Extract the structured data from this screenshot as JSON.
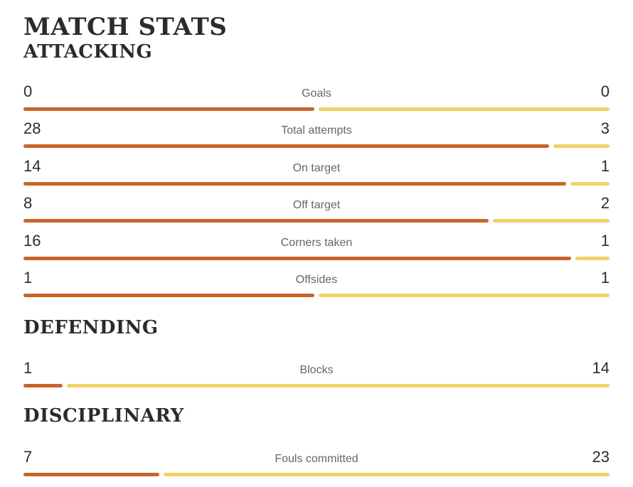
{
  "title": "MATCH STATS",
  "colors": {
    "home": "#c8642a",
    "away": "#f2d264"
  },
  "sections": [
    {
      "name": "ATTACKING",
      "stats": [
        {
          "label": "Goals",
          "home": "0",
          "away": "0"
        },
        {
          "label": "Total attempts",
          "home": "28",
          "away": "3"
        },
        {
          "label": "On target",
          "home": "14",
          "away": "1"
        },
        {
          "label": "Off target",
          "home": "8",
          "away": "2"
        },
        {
          "label": "Corners taken",
          "home": "16",
          "away": "1"
        },
        {
          "label": "Offsides",
          "home": "1",
          "away": "1"
        }
      ]
    },
    {
      "name": "DEFENDING",
      "stats": [
        {
          "label": "Blocks",
          "home": "1",
          "away": "14"
        }
      ]
    },
    {
      "name": "DISCIPLINARY",
      "stats": [
        {
          "label": "Fouls committed",
          "home": "7",
          "away": "23"
        }
      ]
    }
  ]
}
